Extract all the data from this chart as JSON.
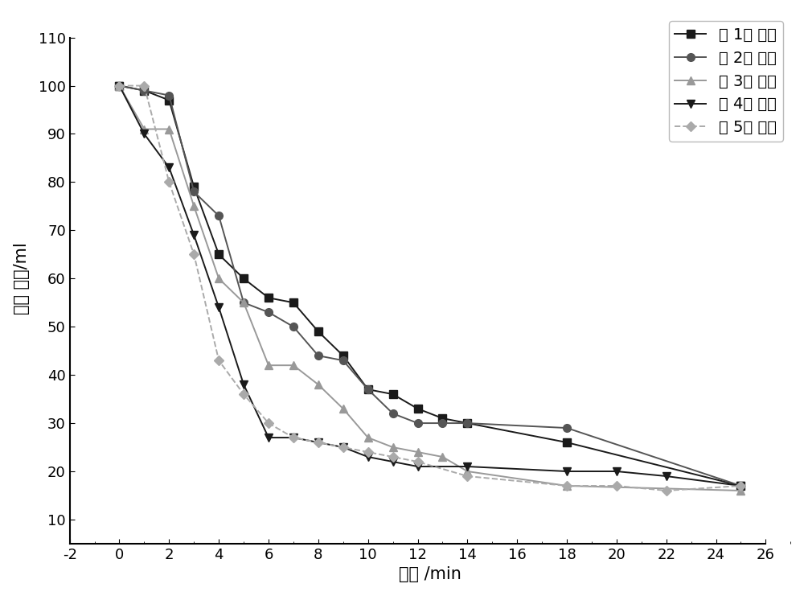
{
  "title": "",
  "xlabel": "时间 /min",
  "ylabel": "沉降 体积/ml",
  "xlim": [
    -2,
    27
  ],
  "ylim": [
    5,
    115
  ],
  "xticks": [
    -2,
    0,
    2,
    4,
    6,
    8,
    10,
    12,
    14,
    16,
    18,
    20,
    22,
    24,
    26
  ],
  "yticks": [
    10,
    20,
    30,
    40,
    50,
    60,
    70,
    80,
    90,
    100,
    110
  ],
  "series": [
    {
      "label": "第 1次 循环",
      "color": "#1a1a1a",
      "marker": "s",
      "markersize": 7,
      "linewidth": 1.4,
      "linestyle": "-",
      "x": [
        0,
        1,
        2,
        3,
        4,
        5,
        6,
        7,
        8,
        9,
        10,
        11,
        12,
        13,
        14,
        18,
        25
      ],
      "y": [
        100,
        99,
        97,
        79,
        65,
        60,
        56,
        55,
        49,
        44,
        37,
        36,
        33,
        31,
        30,
        26,
        17
      ]
    },
    {
      "label": "第 2次 循环",
      "color": "#555555",
      "marker": "o",
      "markersize": 7,
      "linewidth": 1.4,
      "linestyle": "-",
      "x": [
        0,
        1,
        2,
        3,
        4,
        5,
        6,
        7,
        8,
        9,
        10,
        11,
        12,
        13,
        14,
        18,
        25
      ],
      "y": [
        100,
        99,
        98,
        78,
        73,
        55,
        53,
        50,
        44,
        43,
        37,
        32,
        30,
        30,
        30,
        29,
        17
      ]
    },
    {
      "label": "第 3次 循环",
      "color": "#999999",
      "marker": "^",
      "markersize": 7,
      "linewidth": 1.4,
      "linestyle": "-",
      "x": [
        0,
        1,
        2,
        3,
        4,
        5,
        6,
        7,
        8,
        9,
        10,
        11,
        12,
        13,
        14,
        18,
        25
      ],
      "y": [
        100,
        91,
        91,
        75,
        60,
        55,
        42,
        42,
        38,
        33,
        27,
        25,
        24,
        23,
        20,
        17,
        16
      ]
    },
    {
      "label": "第 4次 循环",
      "color": "#1a1a1a",
      "marker": "v",
      "markersize": 7,
      "linewidth": 1.4,
      "linestyle": "-",
      "x": [
        0,
        1,
        2,
        3,
        4,
        5,
        6,
        7,
        8,
        9,
        10,
        11,
        12,
        14,
        18,
        20,
        22,
        25
      ],
      "y": [
        100,
        90,
        83,
        69,
        54,
        38,
        27,
        27,
        26,
        25,
        23,
        22,
        21,
        21,
        20,
        20,
        19,
        17
      ]
    },
    {
      "label": "第 5次 循环",
      "color": "#aaaaaa",
      "marker": "D",
      "markersize": 6,
      "linewidth": 1.4,
      "linestyle": "--",
      "x": [
        0,
        1,
        2,
        3,
        4,
        5,
        6,
        7,
        8,
        9,
        10,
        11,
        12,
        14,
        18,
        20,
        22,
        25
      ],
      "y": [
        100,
        100,
        80,
        65,
        43,
        36,
        30,
        27,
        26,
        25,
        24,
        23,
        22,
        19,
        17,
        17,
        16,
        17
      ]
    }
  ],
  "legend_loc": "upper right",
  "legend_fontsize": 14,
  "axis_fontsize": 15,
  "tick_fontsize": 13,
  "background_color": "#ffffff",
  "grid": false
}
